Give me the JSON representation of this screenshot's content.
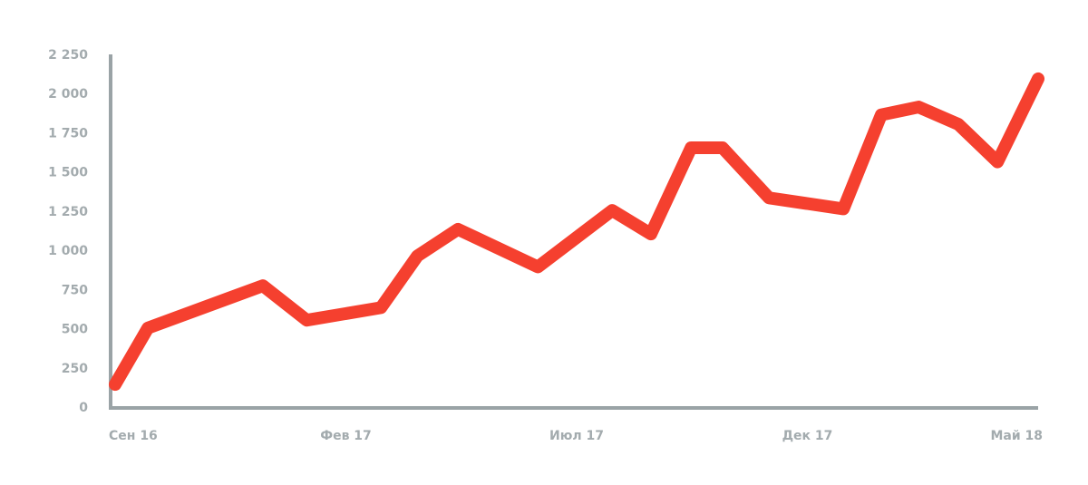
{
  "chart_data": {
    "type": "line",
    "x": [
      0,
      0.71,
      3.2,
      4.15,
      5.76,
      6.55,
      7.43,
      9.16,
      10.77,
      11.61,
      12.48,
      13.16,
      14.17,
      15.78,
      16.6,
      17.41,
      18.27,
      19.12,
      20
    ],
    "series": [
      {
        "color": "#f5402f",
        "values": [
          150,
          510,
          780,
          560,
          640,
          970,
          1140,
          900,
          1260,
          1110,
          1660,
          1660,
          1340,
          1270,
          1870,
          1920,
          1810,
          1570,
          2100
        ]
      }
    ],
    "xlim": [
      0,
      20
    ],
    "xticks": [
      {
        "value": 0,
        "label": "Сен 16"
      },
      {
        "value": 5,
        "label": "Фев 17"
      },
      {
        "value": 10,
        "label": "Июл 17"
      },
      {
        "value": 15,
        "label": "Дек 17"
      },
      {
        "value": 20,
        "label": "Май 18"
      }
    ],
    "ylim": [
      0,
      2250
    ],
    "yticks": [
      0,
      250,
      500,
      750,
      {
        "value": 1000,
        "label": "1 000"
      },
      {
        "value": 1250,
        "label": "1 250"
      },
      {
        "value": 1500,
        "label": "1 500"
      },
      {
        "value": 1750,
        "label": "1 750"
      },
      {
        "value": 2000,
        "label": "2 000"
      },
      {
        "value": 2250,
        "label": "2 250"
      }
    ]
  }
}
